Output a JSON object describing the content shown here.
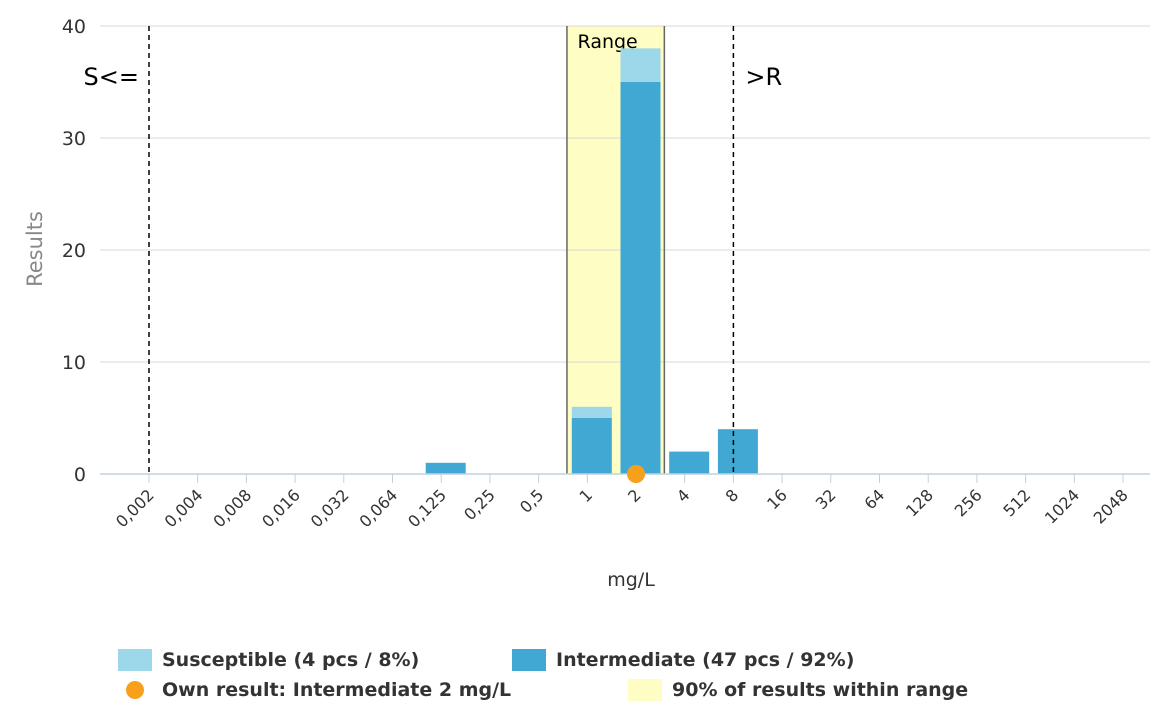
{
  "chart_data": {
    "type": "bar",
    "stacked": true,
    "categories": [
      "0,002",
      "0,004",
      "0,008",
      "0,016",
      "0,032",
      "0,064",
      "0,125",
      "0,25",
      "0,5",
      "1",
      "2",
      "4",
      "8",
      "16",
      "32",
      "64",
      "128",
      "256",
      "512",
      "1024",
      "2048"
    ],
    "series": [
      {
        "name": "Intermediate (47 pcs / 92%)",
        "color": "#41a8d4",
        "values": [
          0,
          0,
          0,
          0,
          0,
          0,
          1,
          0,
          0,
          5,
          35,
          2,
          4,
          0,
          0,
          0,
          0,
          0,
          0,
          0,
          0
        ]
      },
      {
        "name": "Susceptible (4 pcs / 8%)",
        "color": "#9cd7ea",
        "values": [
          0,
          0,
          0,
          0,
          0,
          0,
          0,
          0,
          0,
          1,
          3,
          0,
          0,
          0,
          0,
          0,
          0,
          0,
          0,
          0,
          0
        ]
      }
    ],
    "ylim": [
      0,
      40
    ],
    "yticks": [
      0,
      10,
      20,
      30,
      40
    ],
    "xlabel": "mg/L",
    "ylabel": "Results",
    "range_band": {
      "label": "Range",
      "from": "1",
      "to": "4",
      "color": "#fdfdc4"
    },
    "breakpoints": [
      {
        "label": "S<=",
        "category": "0,002",
        "side": "left"
      },
      {
        "label": ">R",
        "category": "8",
        "side": "right"
      }
    ],
    "own_result": {
      "category": "2",
      "value": 0,
      "color": "#f7a01c"
    },
    "grid": true
  },
  "legend": {
    "susceptible": "Susceptible (4 pcs / 8%)",
    "intermediate": "Intermediate (47 pcs / 92%)",
    "own_result": "Own result: Intermediate 2 mg/L",
    "range": "90% of results within range"
  },
  "colors": {
    "susceptible": "#9cd7ea",
    "intermediate": "#41a8d4",
    "own_result": "#f7a01c",
    "range": "#fdfdc4"
  }
}
